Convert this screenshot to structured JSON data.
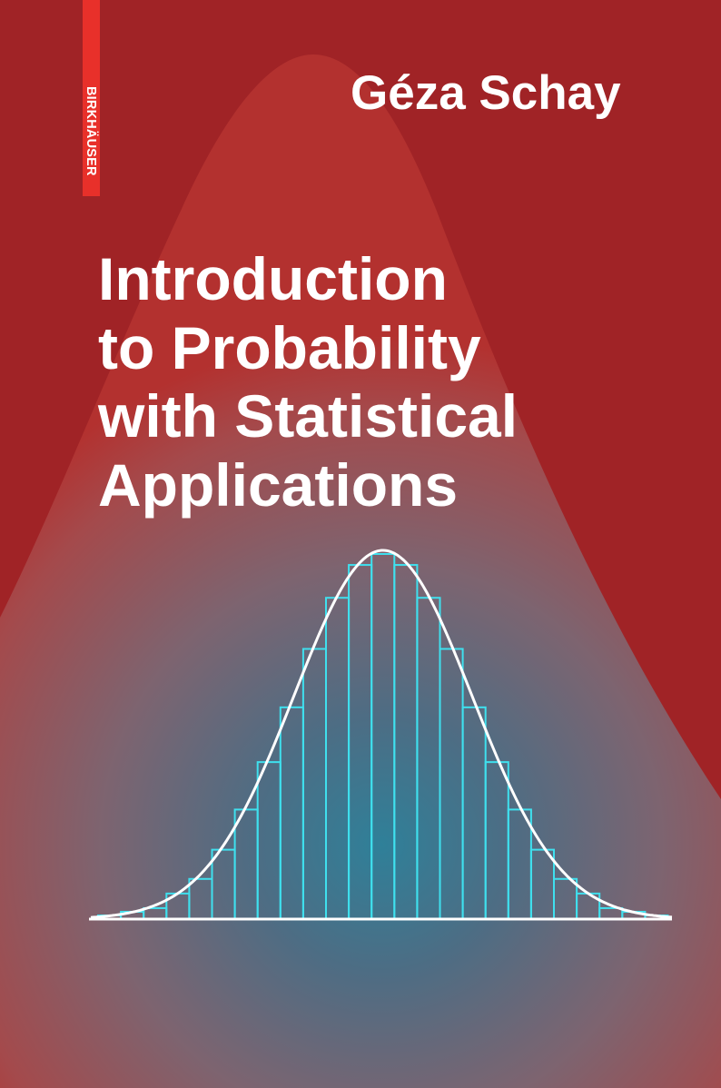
{
  "publisher": {
    "logo_text": "BIRKHÄUSER"
  },
  "author": "Géza Schay",
  "title_lines": [
    "Introduction",
    "to Probability",
    "with Statistical",
    "Applications"
  ],
  "colors": {
    "background": "#a02326",
    "logo_strip": "#e8302a",
    "glow_center": "#2f8099",
    "histogram_stroke": "#3fe0ee",
    "curve": "#ffffff"
  },
  "chart_data": {
    "type": "bar",
    "description_kind": "histogram with normal curve overlay",
    "values": [
      1,
      2,
      3,
      7,
      11,
      19,
      30,
      43,
      58,
      74,
      88,
      97,
      100,
      97,
      88,
      74,
      58,
      43,
      30,
      19,
      11,
      7,
      3,
      2,
      1
    ],
    "curve": "normal"
  }
}
